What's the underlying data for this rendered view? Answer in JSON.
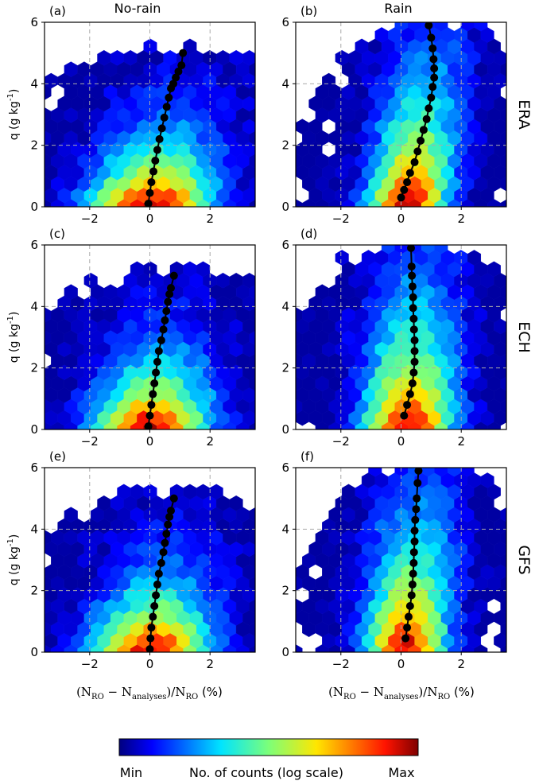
{
  "figure": {
    "column_titles": [
      "No-rain",
      "Rain"
    ],
    "row_labels": [
      "ERA",
      "ECH",
      "GFS"
    ],
    "xlabel_main": "(N",
    "xlabel_sub1": "RO",
    "xlabel_mid": " − N",
    "xlabel_sub2": "analyses",
    "xlabel_mid2": ")/N",
    "xlabel_sub3": "RO",
    "xlabel_unit": " (%)",
    "ylabel_main": "q (g  kg",
    "ylabel_sup": "-1",
    "ylabel_end": ")"
  },
  "colorbar": {
    "label": "No. of counts (log scale)",
    "min_label": "Min",
    "max_label": "Max",
    "colormap": "jet"
  },
  "chart_data": [
    {
      "type": "heatmap",
      "panel": "(a)",
      "column": "No-rain",
      "row": "ERA",
      "xlim": [
        -3.5,
        3.5
      ],
      "ylim": [
        0,
        6
      ],
      "xticks": [
        -2,
        0,
        2
      ],
      "yticks": [
        0,
        2,
        4,
        6
      ],
      "xticklabels": [
        "−2",
        "0",
        "2"
      ],
      "yticklabels": [
        "0",
        "2",
        "4",
        "6"
      ],
      "grid": true,
      "xlabel": "",
      "ylabel": "q (g kg-1)",
      "density": {
        "mean_x0": 0.0,
        "mean_slope": 0.2,
        "sx0": 1.4,
        "sx_slope": 0.08,
        "decay": 0.55,
        "edge": 5.3
      },
      "mean_profile": {
        "x": [
          -0.05,
          0.0,
          0.05,
          0.12,
          0.18,
          0.25,
          0.32,
          0.4,
          0.48,
          0.56,
          0.63,
          0.7,
          0.78,
          0.86,
          0.95,
          1.05,
          1.1
        ],
        "y": [
          0.1,
          0.45,
          0.8,
          1.15,
          1.5,
          1.85,
          2.2,
          2.55,
          2.9,
          3.25,
          3.55,
          3.85,
          4.0,
          4.2,
          4.4,
          4.6,
          5.0
        ]
      }
    },
    {
      "type": "heatmap",
      "panel": "(b)",
      "column": "Rain",
      "row": "ERA",
      "xlim": [
        -3.5,
        3.5
      ],
      "ylim": [
        0,
        6
      ],
      "xticks": [
        -2,
        0,
        2
      ],
      "yticks": [
        0,
        2,
        4,
        6
      ],
      "xticklabels": [
        "−2",
        "0",
        "2"
      ],
      "yticklabels": [
        "0",
        "2",
        "4",
        "6"
      ],
      "grid": true,
      "xlabel": "",
      "ylabel": "",
      "density": {
        "mean_x0": 0.2,
        "mean_slope": 0.15,
        "sx0": 0.9,
        "sx_slope": 0.05,
        "decay": 0.3,
        "edge": 6.2
      },
      "mean_profile": {
        "x": [
          0.0,
          0.1,
          0.2,
          0.3,
          0.45,
          0.55,
          0.65,
          0.75,
          0.85,
          0.92,
          1.0,
          1.05,
          1.1,
          1.1,
          1.08,
          1.05,
          1.0,
          0.92
        ],
        "y": [
          0.3,
          0.55,
          0.8,
          1.1,
          1.45,
          1.8,
          2.15,
          2.5,
          2.85,
          3.2,
          3.55,
          3.9,
          4.2,
          4.5,
          4.8,
          5.15,
          5.5,
          5.9
        ]
      }
    },
    {
      "type": "heatmap",
      "panel": "(c)",
      "column": "No-rain",
      "row": "ECH",
      "xlim": [
        -3.5,
        3.5
      ],
      "ylim": [
        0,
        6
      ],
      "xticks": [
        -2,
        0,
        2
      ],
      "yticks": [
        0,
        2,
        4,
        6
      ],
      "xticklabels": [
        "−2",
        "0",
        "2"
      ],
      "yticklabels": [
        "0",
        "2",
        "4",
        "6"
      ],
      "grid": true,
      "xlabel": "",
      "ylabel": "q (g kg-1)",
      "density": {
        "mean_x0": 0.0,
        "mean_slope": 0.15,
        "sx0": 1.3,
        "sx_slope": 0.08,
        "decay": 0.55,
        "edge": 5.3
      },
      "mean_profile": {
        "x": [
          -0.05,
          0.0,
          0.05,
          0.1,
          0.15,
          0.2,
          0.25,
          0.3,
          0.38,
          0.45,
          0.5,
          0.55,
          0.6,
          0.65,
          0.7,
          0.8
        ],
        "y": [
          0.1,
          0.45,
          0.8,
          1.15,
          1.5,
          1.85,
          2.2,
          2.55,
          2.9,
          3.25,
          3.55,
          3.85,
          4.15,
          4.4,
          4.6,
          5.0
        ]
      }
    },
    {
      "type": "heatmap",
      "panel": "(d)",
      "column": "Rain",
      "row": "ECH",
      "xlim": [
        -3.5,
        3.5
      ],
      "ylim": [
        0,
        6
      ],
      "xticks": [
        -2,
        0,
        2
      ],
      "yticks": [
        0,
        2,
        4,
        6
      ],
      "xticklabels": [
        "−2",
        "0",
        "2"
      ],
      "yticklabels": [
        "0",
        "2",
        "4",
        "6"
      ],
      "grid": true,
      "xlabel": "",
      "ylabel": "",
      "density": {
        "mean_x0": 0.25,
        "mean_slope": 0.05,
        "sx0": 1.0,
        "sx_slope": 0.05,
        "decay": 0.3,
        "edge": 6.2
      },
      "mean_profile": {
        "x": [
          0.1,
          0.2,
          0.3,
          0.38,
          0.42,
          0.45,
          0.45,
          0.45,
          0.43,
          0.42,
          0.4,
          0.4,
          0.38,
          0.36,
          0.35,
          0.33
        ],
        "y": [
          0.45,
          0.8,
          1.15,
          1.5,
          1.85,
          2.2,
          2.55,
          2.9,
          3.25,
          3.6,
          3.95,
          4.3,
          4.65,
          5.0,
          5.3,
          5.9
        ]
      }
    },
    {
      "type": "heatmap",
      "panel": "(e)",
      "column": "No-rain",
      "row": "GFS",
      "xlim": [
        -3.5,
        3.5
      ],
      "ylim": [
        0,
        6
      ],
      "xticks": [
        -2,
        0,
        2
      ],
      "yticks": [
        0,
        2,
        4,
        6
      ],
      "xticklabels": [
        "−2",
        "0",
        "2"
      ],
      "yticklabels": [
        "0",
        "2",
        "4",
        "6"
      ],
      "grid": true,
      "xlabel": "(N_RO − N_analyses)/N_RO (%)",
      "ylabel": "q (g kg-1)",
      "density": {
        "mean_x0": 0.0,
        "mean_slope": 0.15,
        "sx0": 1.3,
        "sx_slope": 0.08,
        "decay": 0.55,
        "edge": 5.3
      },
      "mean_profile": {
        "x": [
          0.0,
          0.02,
          0.05,
          0.1,
          0.15,
          0.2,
          0.25,
          0.3,
          0.38,
          0.45,
          0.5,
          0.55,
          0.6,
          0.65,
          0.7,
          0.8
        ],
        "y": [
          0.1,
          0.45,
          0.8,
          1.15,
          1.5,
          1.85,
          2.2,
          2.55,
          2.9,
          3.25,
          3.55,
          3.85,
          4.15,
          4.4,
          4.6,
          5.0
        ]
      }
    },
    {
      "type": "heatmap",
      "panel": "(f)",
      "column": "Rain",
      "row": "GFS",
      "xlim": [
        -3.5,
        3.5
      ],
      "ylim": [
        0,
        6
      ],
      "xticks": [
        -2,
        0,
        2
      ],
      "yticks": [
        0,
        2,
        4,
        6
      ],
      "xticklabels": [
        "−2",
        "0",
        "2"
      ],
      "yticklabels": [
        "0",
        "2",
        "4",
        "6"
      ],
      "grid": true,
      "xlabel": "(N_RO − N_analyses)/N_RO (%)",
      "ylabel": "",
      "density": {
        "mean_x0": 0.15,
        "mean_slope": 0.08,
        "sx0": 0.9,
        "sx_slope": 0.06,
        "decay": 0.3,
        "edge": 6.2
      },
      "mean_profile": {
        "x": [
          0.15,
          0.2,
          0.25,
          0.3,
          0.35,
          0.38,
          0.4,
          0.42,
          0.43,
          0.45,
          0.45,
          0.47,
          0.5,
          0.52,
          0.55,
          0.58
        ],
        "y": [
          0.45,
          0.8,
          1.15,
          1.5,
          1.85,
          2.2,
          2.55,
          2.9,
          3.25,
          3.6,
          3.95,
          4.3,
          4.65,
          5.0,
          5.5,
          5.9
        ]
      }
    }
  ]
}
